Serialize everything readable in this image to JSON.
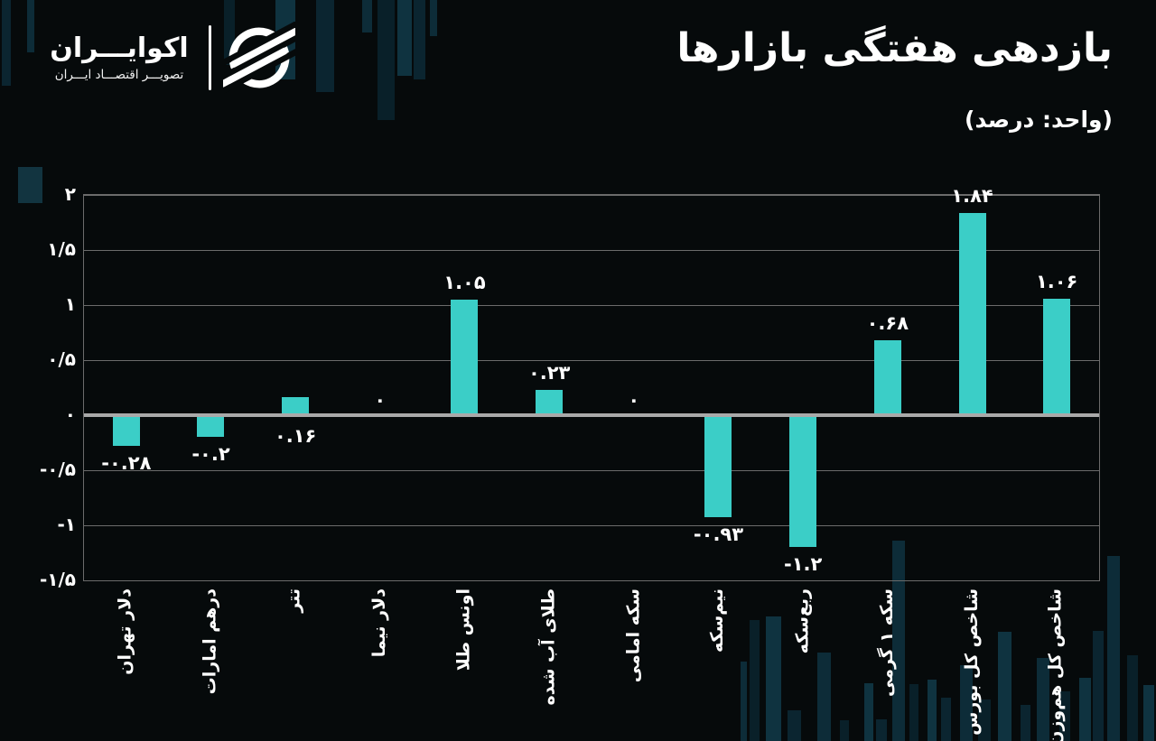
{
  "brand": {
    "name": "اکوایـــران",
    "tagline": "تصویـــر اقتصـــاد ایـــران"
  },
  "header": {
    "title": "بازدهی هفتگی بازارها",
    "subtitle": "(واحد: درصد)"
  },
  "colors": {
    "background": "#060a0b",
    "bar": "#3bcec7",
    "grid": "#6b6b6b",
    "zero_line": "#a9a9a9",
    "text": "#ffffff",
    "decorative_bar": "#0d2c38"
  },
  "chart_data": {
    "type": "bar",
    "title": "بازدهی هفتگی بازارها",
    "unit": "(واحد: درصد)",
    "orientation": "vertical",
    "grid": "horizontal",
    "legend": "none",
    "ylim": [
      -1.5,
      2
    ],
    "categories": [
      "دلار تهران",
      "درهم امارات",
      "تتر",
      "دلار نیما",
      "اونس طلا",
      "طلای آب شده",
      "سکه امامی",
      "نیم‌سکه",
      "ربع‌سکه",
      "سکه ۱ گرمی",
      "شاخص کل بورس",
      "شاخص کل هم‌وزن"
    ],
    "values": [
      -0.28,
      -0.2,
      0.16,
      0,
      1.05,
      0.23,
      0,
      -0.93,
      -1.2,
      0.68,
      1.84,
      1.06
    ],
    "value_labels": [
      "-۰.۲۸",
      "-۰.۲",
      "۰.۱۶",
      "۰",
      "۱.۰۵",
      "۰.۲۳",
      "۰",
      "-۰.۹۳",
      "-۱.۲",
      "۰.۶۸",
      "۱.۸۴",
      "۱.۰۶"
    ],
    "value_label_placements": [
      "below-bar",
      "below-bar",
      "below-axis",
      "above-axis",
      "above-bar",
      "above-bar",
      "above-axis",
      "below-bar",
      "below-bar",
      "above-bar",
      "above-bar",
      "above-bar"
    ],
    "y_ticks": {
      "values": [
        2,
        1.5,
        1,
        0.5,
        0,
        -0.5,
        -1,
        -1.5
      ],
      "labels": [
        "۲",
        "۱/۵",
        "۱",
        "۰/۵",
        "۰",
        "-۰/۵",
        "-۱",
        "-۱/۵"
      ]
    }
  }
}
